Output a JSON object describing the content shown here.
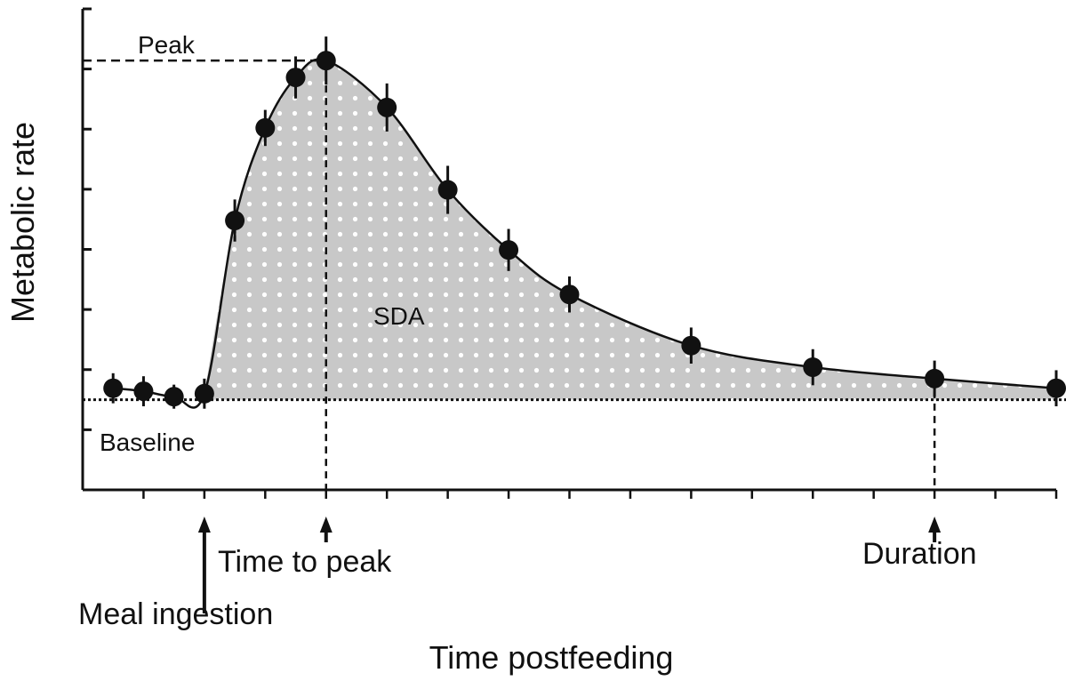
{
  "chart_data": {
    "type": "line",
    "xlabel": "Time postfeeding",
    "ylabel": "Metabolic rate",
    "x": [
      0.5,
      1,
      1.5,
      2,
      2.5,
      3,
      3.5,
      4,
      5,
      6,
      7,
      8,
      10,
      12,
      14,
      16
    ],
    "values": [
      1.69,
      1.64,
      1.55,
      1.6,
      4.48,
      6.02,
      6.86,
      7.14,
      6.36,
      4.99,
      3.99,
      3.25,
      2.4,
      2.04,
      1.85,
      1.69
    ],
    "errors": [
      0.25,
      0.25,
      0.2,
      0.25,
      0.35,
      0.3,
      0.35,
      0.4,
      0.4,
      0.4,
      0.35,
      0.3,
      0.3,
      0.3,
      0.3,
      0.3
    ],
    "color": "#111111",
    "fill_color": "#c8c8c8",
    "baseline": 1.5,
    "annotations": {
      "peak": "Peak",
      "baseline": "Baseline",
      "area": "SDA"
    },
    "markers": [
      {
        "label": "Meal ingestion",
        "x": 2
      },
      {
        "label": "Time to peak",
        "x": 4
      },
      {
        "label": "Duration",
        "x": 14
      }
    ],
    "xlim": [
      0,
      16
    ],
    "xticks": [
      1,
      2,
      3,
      4,
      5,
      6,
      7,
      8,
      9,
      10,
      11,
      12,
      13,
      14,
      15,
      16
    ],
    "ylim": [
      0,
      8
    ],
    "yticks": [
      0,
      1,
      2,
      3,
      4,
      5,
      6,
      7,
      8
    ]
  }
}
